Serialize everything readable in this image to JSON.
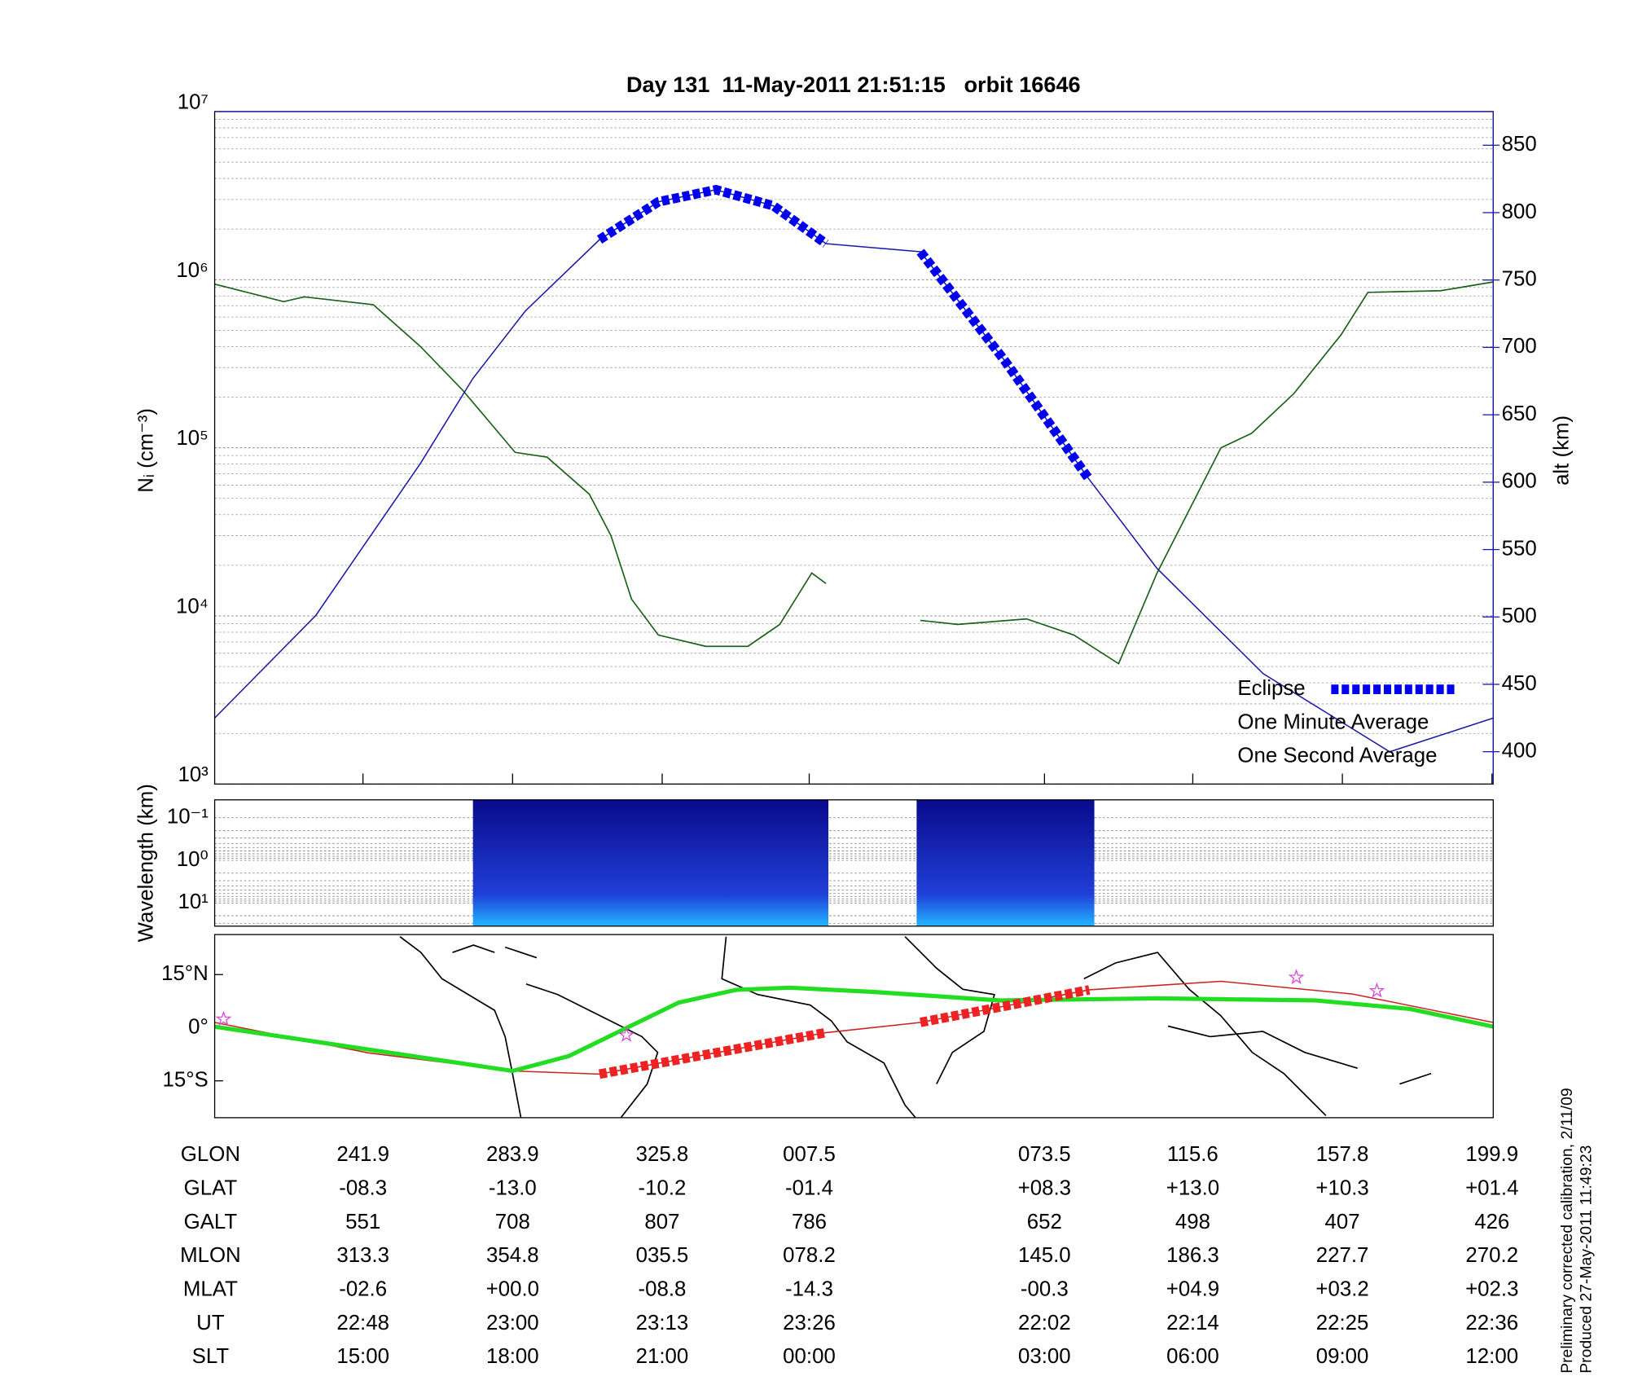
{
  "chart_data": [
    {
      "type": "line",
      "title": "Day 131  11-May-2011 21:51:15   orbit 16646",
      "ylabel": "Nᵢ (cm⁻³)",
      "y2label": "alt (km)",
      "log": true,
      "minor_grid": true,
      "legend": "lower right",
      "xlim": [
        0,
        100
      ],
      "xticks": [
        11.6,
        23.3,
        35.0,
        46.5,
        64.9,
        76.5,
        88.2,
        99.9
      ],
      "ylim": [
        1000,
        10000000
      ],
      "yticks": [
        {
          "value": 1000,
          "label": "10³"
        },
        {
          "value": 10000,
          "label": "10⁴"
        },
        {
          "value": 100000,
          "label": "10⁵"
        },
        {
          "value": 1000000,
          "label": "10⁶"
        },
        {
          "value": 10000000,
          "label": "10⁷"
        }
      ],
      "y2lim": [
        376,
        875
      ],
      "y2ticks": [
        400,
        450,
        500,
        550,
        600,
        650,
        700,
        750,
        800,
        850
      ],
      "series": [
        {
          "name": "One Second Average",
          "color": "#22dd22",
          "style": "thin",
          "x": [
            0,
            5.4,
            7.0,
            12.4,
            16.1,
            19.4,
            23.5,
            26.0,
            29.3,
            31.0,
            32.6,
            34.7,
            38.4,
            41.7,
            44.2,
            46.7,
            47.8,
            51.5,
            55.2,
            58.1,
            63.5,
            67.2,
            70.7,
            73.7,
            78.7,
            81.1,
            84.4,
            88.1,
            90.2,
            95.9,
            100
          ],
          "values": [
            940000,
            740000,
            790000,
            710000,
            400000,
            220000,
            94000,
            88000,
            53000,
            30000,
            12600,
            7700,
            6600,
            6600,
            8900,
            18000,
            15600,
            null,
            9400,
            8900,
            9600,
            7700,
            5200,
            18000,
            100000,
            122000,
            210000,
            470000,
            840000,
            860000,
            970000
          ]
        },
        {
          "name": "One Minute Average",
          "color": "#1f5a1f",
          "style": "thin",
          "x": [
            0,
            5.4,
            7.0,
            12.4,
            16.1,
            19.4,
            23.5,
            26.0,
            29.3,
            31.0,
            32.6,
            34.7,
            38.4,
            41.7,
            44.2,
            46.7,
            47.8,
            51.5,
            55.2,
            58.1,
            63.5,
            67.2,
            70.7,
            73.7,
            78.7,
            81.1,
            84.4,
            88.1,
            90.2,
            95.9,
            100
          ],
          "values": [
            940000,
            740000,
            790000,
            710000,
            400000,
            220000,
            94000,
            88000,
            53000,
            30000,
            12600,
            7700,
            6600,
            6600,
            8900,
            18000,
            15600,
            null,
            9400,
            8900,
            9600,
            7700,
            5200,
            18000,
            100000,
            122000,
            210000,
            470000,
            840000,
            860000,
            970000
          ]
        },
        {
          "name": "alt",
          "color": "#1a1aaa",
          "style": "thin",
          "axis": "y2",
          "legend": false,
          "x": [
            0,
            7.9,
            11.6,
            16.1,
            20.2,
            24.3,
            30.1,
            34.7,
            39.2,
            43.7,
            47.8,
            55.2,
            61.8,
            68.4,
            73.7,
            82.0,
            91.9,
            100
          ],
          "values": [
            425,
            501,
            552,
            614,
            677,
            727,
            780,
            808,
            817,
            805,
            777,
            771,
            690,
            602,
            536,
            458,
            400,
            425
          ]
        },
        {
          "name": "Eclipse",
          "color": "#0000ee",
          "style": "thick",
          "axis": "y2",
          "x": [
            30.1,
            34.7,
            39.2,
            43.7,
            47.8,
            51.5,
            55.2,
            61.8,
            68.4
          ],
          "values": [
            780,
            808,
            817,
            805,
            777,
            null,
            771,
            690,
            602
          ]
        }
      ]
    },
    {
      "type": "spectrogram",
      "ylabel": "Wavelength (km)",
      "log": true,
      "yinvert": true,
      "grid": true,
      "xlim": [
        0,
        100
      ],
      "ylim": [
        0.038,
        35
      ],
      "yticks": [
        {
          "value": 0.1,
          "label": "10⁻¹"
        },
        {
          "value": 1,
          "label": "10⁰"
        },
        {
          "value": 10,
          "label": "10¹"
        }
      ],
      "segments": [
        [
          20.2,
          48.0
        ],
        [
          54.9,
          68.8
        ]
      ],
      "colors": [
        "#0a0a8c",
        "#1f3fd8",
        "#22b6ff"
      ]
    },
    {
      "type": "map",
      "xlim": [
        0,
        100
      ],
      "ylim": [
        -25.4,
        26.3
      ],
      "yticks": [
        {
          "value": 15,
          "label": "15°N"
        },
        {
          "value": 0,
          "label": "0°"
        },
        {
          "value": -15,
          "label": "15°S"
        }
      ],
      "series": [
        {
          "name": "orbit",
          "color": "#cc2222",
          "style": "thin",
          "x": [
            0,
            12.0,
            23.3,
            30.1,
            47.8,
            55.2,
            68.4,
            78.7,
            89.0,
            100
          ],
          "values": [
            1.5,
            -7.1,
            -12.2,
            -13.1,
            -1.4,
            1.5,
            10.7,
            13.1,
            9.5,
            1.5
          ]
        },
        {
          "name": "track",
          "color": "#22dd22",
          "style": "medium",
          "x": [
            0,
            23.3,
            27.7,
            36.3,
            40.8,
            45.0,
            51.5,
            61.4,
            73.7,
            86.1,
            93.5,
            100
          ],
          "values": [
            0.3,
            -12.2,
            -8.0,
            7.1,
            10.7,
            11.3,
            10.1,
            7.7,
            8.3,
            7.7,
            5.3,
            0.3
          ]
        },
        {
          "name": "eclipse",
          "color": "#ee2222",
          "style": "thick",
          "x": [
            30.1,
            47.8,
            51.5,
            55.2,
            68.4
          ],
          "values": [
            -13.1,
            -1.4,
            null,
            1.5,
            10.7
          ]
        },
        {
          "name": "stars",
          "color": "#dd44dd",
          "style": "star",
          "x": [
            0.7,
            32.2,
            84.6,
            90.9
          ],
          "values": [
            2.4,
            -2.1,
            14.2,
            10.4
          ]
        }
      ]
    }
  ],
  "ephemeris": {
    "rows": [
      {
        "label": "GLON",
        "values": [
          "241.9",
          "283.9",
          "325.8",
          "007.5",
          "073.5",
          "115.6",
          "157.8",
          "199.9"
        ]
      },
      {
        "label": "GLAT",
        "values": [
          "-08.3",
          "-13.0",
          "-10.2",
          "-01.4",
          "+08.3",
          "+13.0",
          "+10.3",
          "+01.4"
        ]
      },
      {
        "label": "GALT",
        "values": [
          "551",
          "708",
          "807",
          "786",
          "652",
          "498",
          "407",
          "426"
        ]
      },
      {
        "label": "MLON",
        "values": [
          "313.3",
          "354.8",
          "035.5",
          "078.2",
          "145.0",
          "186.3",
          "227.7",
          "270.2"
        ]
      },
      {
        "label": "MLAT",
        "values": [
          "-02.6",
          "+00.0",
          "-08.8",
          "-14.3",
          "-00.3",
          "+04.9",
          "+03.2",
          "+02.3"
        ]
      },
      {
        "label": "UT",
        "values": [
          "22:48",
          "23:00",
          "23:13",
          "23:26",
          "22:02",
          "22:14",
          "22:25",
          "22:36"
        ]
      },
      {
        "label": "SLT",
        "values": [
          "15:00",
          "18:00",
          "21:00",
          "00:00",
          "03:00",
          "06:00",
          "09:00",
          "12:00"
        ]
      }
    ]
  },
  "notes": [
    "Preliminary corrected calibration, 2/11/09",
    "Produced 27-May-2011 11:49:23"
  ]
}
